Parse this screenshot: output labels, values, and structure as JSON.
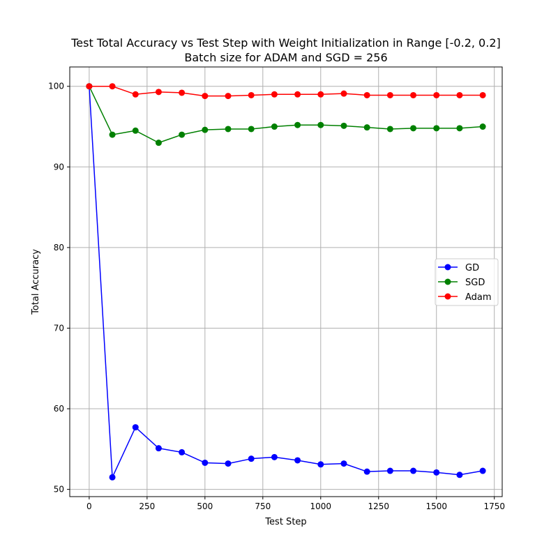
{
  "chart_data": {
    "type": "line",
    "title": "Test Total Accuracy vs Test Step with Weight Initialization in Range [-0.2, 0.2]",
    "subtitle": "Batch size for ADAM and SGD = 256",
    "xlabel": "Test Step",
    "ylabel": "Total Accuracy",
    "xlim": [
      -84,
      1784
    ],
    "ylim": [
      49.1,
      102.4
    ],
    "xticks": [
      0,
      250,
      500,
      750,
      1000,
      1250,
      1500,
      1750
    ],
    "yticks": [
      50,
      60,
      70,
      80,
      90,
      100
    ],
    "grid": true,
    "legend_position": "center-right",
    "x": [
      0,
      100,
      200,
      300,
      400,
      500,
      600,
      700,
      800,
      900,
      1000,
      1100,
      1200,
      1300,
      1400,
      1500,
      1600,
      1700
    ],
    "series": [
      {
        "name": "GD",
        "color": "#0000ff",
        "marker": "circle",
        "values": [
          100.0,
          51.5,
          57.7,
          55.1,
          54.6,
          53.3,
          53.2,
          53.8,
          54.0,
          53.6,
          53.1,
          53.2,
          52.2,
          52.3,
          52.3,
          52.1,
          51.8,
          52.3
        ]
      },
      {
        "name": "SGD",
        "color": "#008000",
        "marker": "circle",
        "values": [
          100.0,
          94.0,
          94.5,
          93.0,
          94.0,
          94.6,
          94.7,
          94.7,
          95.0,
          95.2,
          95.2,
          95.1,
          94.9,
          94.7,
          94.8,
          94.8,
          94.8,
          95.0
        ]
      },
      {
        "name": "Adam",
        "color": "#ff0000",
        "marker": "circle",
        "values": [
          100.0,
          100.0,
          99.0,
          99.3,
          99.2,
          98.8,
          98.8,
          98.9,
          99.0,
          99.0,
          99.0,
          99.1,
          98.9,
          98.9,
          98.9,
          98.9,
          98.9,
          98.9
        ]
      }
    ]
  }
}
